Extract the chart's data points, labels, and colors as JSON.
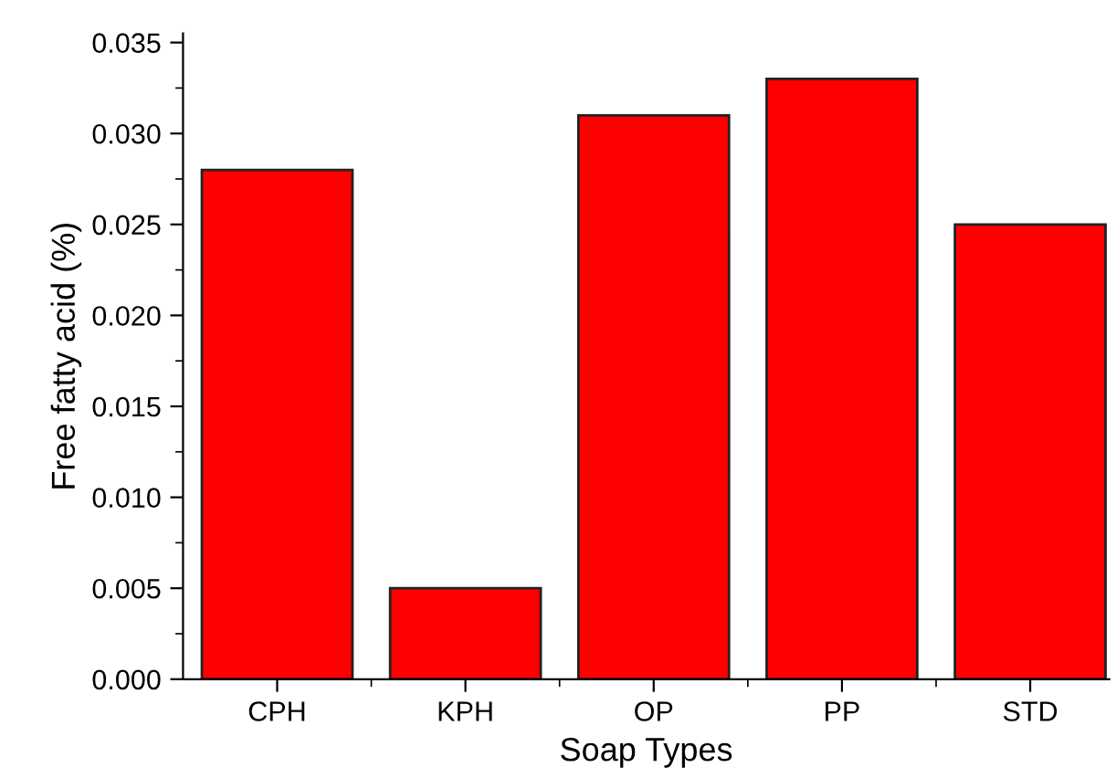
{
  "chart_data": {
    "type": "bar",
    "xlabel": "Soap Types",
    "ylabel": "Free fatty acid (%)",
    "categories": [
      "CPH",
      "KPH",
      "OP",
      "PP",
      "STD"
    ],
    "values": [
      0.028,
      0.005,
      0.031,
      0.033,
      0.025
    ],
    "color": "#ff0000",
    "ylim": [
      0,
      0.0355
    ],
    "yticks": [
      {
        "value": 0,
        "label": "0.000"
      },
      {
        "value": 0.005,
        "label": "0.005"
      },
      {
        "value": 0.01,
        "label": "0.010"
      },
      {
        "value": 0.015,
        "label": "0.015"
      },
      {
        "value": 0.02,
        "label": "0.020"
      },
      {
        "value": 0.025,
        "label": "0.025"
      },
      {
        "value": 0.03,
        "label": "0.030"
      },
      {
        "value": 0.035,
        "label": "0.035"
      }
    ],
    "grid": false,
    "legend": false
  }
}
